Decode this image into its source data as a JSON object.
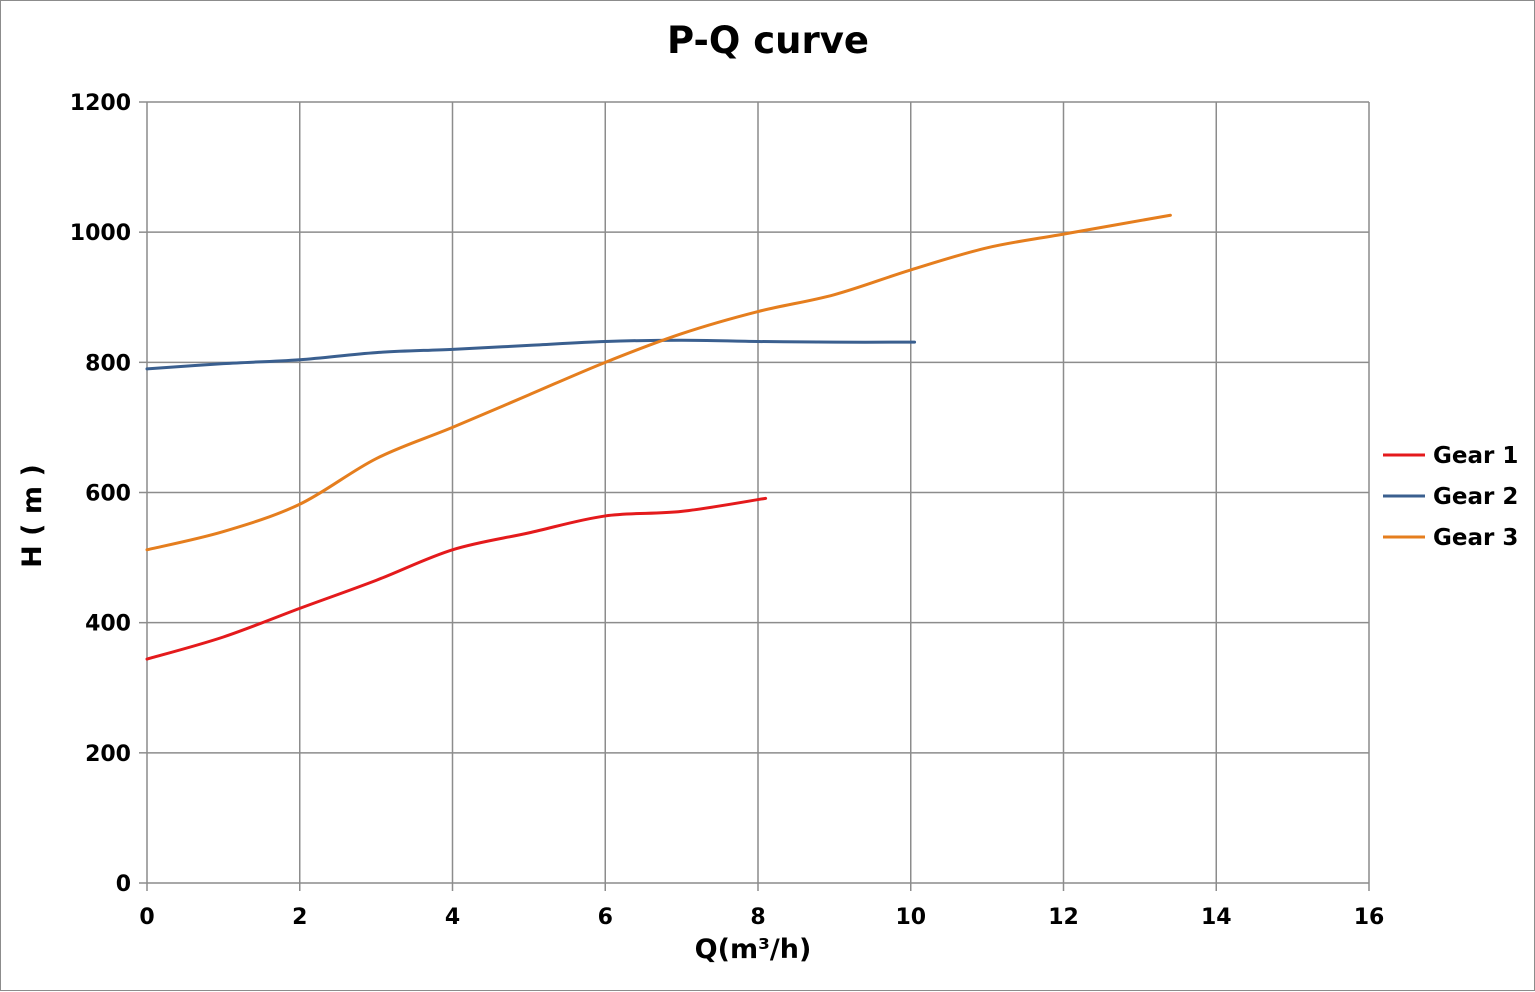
{
  "chart_data": {
    "type": "line",
    "title": "P-Q  curve",
    "xlabel": "Q(m³/h)",
    "ylabel": "H ( m )",
    "xlim": [
      0,
      16
    ],
    "ylim": [
      0,
      1200
    ],
    "x_ticks": [
      0,
      2,
      4,
      6,
      8,
      10,
      12,
      14,
      16
    ],
    "y_ticks": [
      0,
      200,
      400,
      600,
      800,
      1000,
      1200
    ],
    "grid": true,
    "legend_position": "right",
    "series": [
      {
        "name": "Gear 1",
        "color": "#e41a1c",
        "points": [
          [
            0,
            344
          ],
          [
            1,
            378
          ],
          [
            2,
            422
          ],
          [
            3,
            465
          ],
          [
            4,
            512
          ],
          [
            5,
            538
          ],
          [
            6,
            564
          ],
          [
            7,
            571
          ],
          [
            8.1,
            591
          ]
        ]
      },
      {
        "name": "Gear 2",
        "color": "#3a5f8f",
        "points": [
          [
            0,
            790
          ],
          [
            1,
            798
          ],
          [
            2,
            804
          ],
          [
            3,
            815
          ],
          [
            4,
            820
          ],
          [
            5,
            826
          ],
          [
            6,
            832
          ],
          [
            7,
            834
          ],
          [
            8,
            832
          ],
          [
            9,
            831
          ],
          [
            10.05,
            831
          ]
        ]
      },
      {
        "name": "Gear 3",
        "color": "#e57e1e",
        "points": [
          [
            0,
            512
          ],
          [
            1,
            540
          ],
          [
            2,
            582
          ],
          [
            3,
            652
          ],
          [
            4,
            700
          ],
          [
            5,
            750
          ],
          [
            6,
            800
          ],
          [
            7,
            844
          ],
          [
            8,
            878
          ],
          [
            9,
            904
          ],
          [
            10,
            942
          ],
          [
            11,
            976
          ],
          [
            12,
            997
          ],
          [
            13.4,
            1026
          ]
        ]
      }
    ]
  }
}
